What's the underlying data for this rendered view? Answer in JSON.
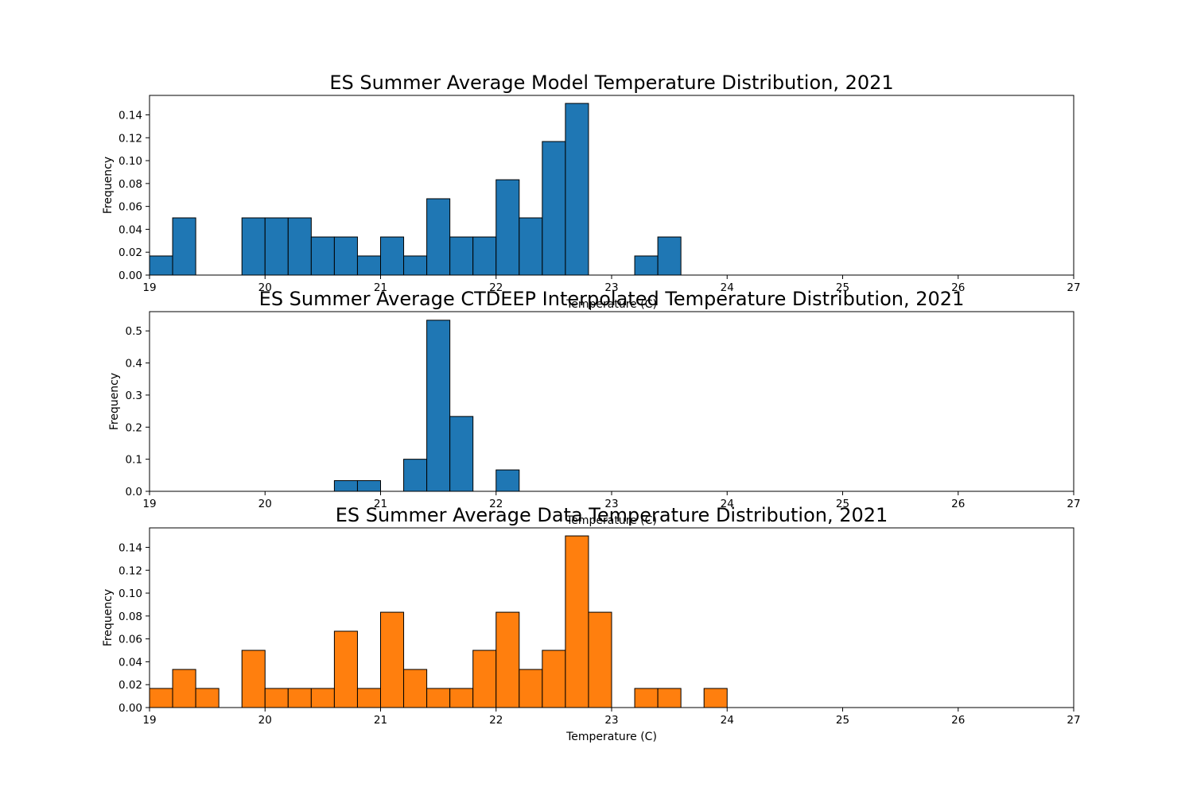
{
  "chart_data": [
    {
      "type": "bar",
      "title": "ES Summer Average Model Temperature Distribution, 2021",
      "xlabel": "Temperature (C)",
      "ylabel": "Frequency",
      "xlim": [
        19,
        27
      ],
      "ylim": [
        0,
        0.157
      ],
      "xticks": [
        "19",
        "20",
        "21",
        "22",
        "23",
        "24",
        "25",
        "26",
        "27"
      ],
      "yticks": [
        "0.00",
        "0.02",
        "0.04",
        "0.06",
        "0.08",
        "0.10",
        "0.12",
        "0.14"
      ],
      "bin_edges_start": 19.0,
      "bin_width": 0.2,
      "values": [
        0.0167,
        0.05,
        0,
        0,
        0.05,
        0.05,
        0.05,
        0.0333,
        0.0333,
        0.0167,
        0.0333,
        0.0167,
        0.0667,
        0.0333,
        0.0333,
        0.0833,
        0.05,
        0.1167,
        0.15,
        0,
        0,
        0.0167,
        0.0333,
        0,
        0,
        0,
        0,
        0,
        0,
        0,
        0,
        0,
        0,
        0,
        0,
        0,
        0,
        0,
        0
      ],
      "color": "#1f77b4",
      "grid": false
    },
    {
      "type": "bar",
      "title": "ES Summer Average CTDEEP Interpolated Temperature Distribution, 2021",
      "xlabel": "Temperature (C)",
      "ylabel": "Frequency",
      "xlim": [
        19,
        27
      ],
      "ylim": [
        0,
        0.56
      ],
      "xticks": [
        "19",
        "20",
        "21",
        "22",
        "23",
        "24",
        "25",
        "26",
        "27"
      ],
      "yticks": [
        "0.0",
        "0.1",
        "0.2",
        "0.3",
        "0.4",
        "0.5"
      ],
      "bin_edges_start": 19.0,
      "bin_width": 0.2,
      "values": [
        0,
        0,
        0,
        0,
        0,
        0,
        0,
        0,
        0.0333,
        0.0333,
        0,
        0.1,
        0.5333,
        0.2333,
        0,
        0.0667,
        0,
        0,
        0,
        0,
        0,
        0,
        0,
        0,
        0,
        0,
        0,
        0,
        0,
        0,
        0,
        0,
        0,
        0,
        0,
        0,
        0,
        0,
        0
      ],
      "color": "#1f77b4",
      "grid": false
    },
    {
      "type": "bar",
      "title": "ES Summer Average Data Temperature Distribution, 2021",
      "xlabel": "Temperature (C)",
      "ylabel": "Frequency",
      "xlim": [
        19,
        27
      ],
      "ylim": [
        0,
        0.157
      ],
      "xticks": [
        "19",
        "20",
        "21",
        "22",
        "23",
        "24",
        "25",
        "26",
        "27"
      ],
      "yticks": [
        "0.00",
        "0.02",
        "0.04",
        "0.06",
        "0.08",
        "0.10",
        "0.12",
        "0.14"
      ],
      "bin_edges_start": 19.0,
      "bin_width": 0.2,
      "values": [
        0.0167,
        0.0333,
        0.0167,
        0,
        0.05,
        0.0167,
        0.0167,
        0.0167,
        0.0667,
        0.0167,
        0.0833,
        0.0333,
        0.0167,
        0.0167,
        0.05,
        0.0833,
        0.0333,
        0.05,
        0.15,
        0.0833,
        0,
        0.0167,
        0.0167,
        0,
        0.0167,
        0,
        0,
        0,
        0,
        0,
        0,
        0,
        0,
        0,
        0,
        0,
        0,
        0,
        0
      ],
      "color": "#ff7f0e",
      "grid": false
    }
  ]
}
